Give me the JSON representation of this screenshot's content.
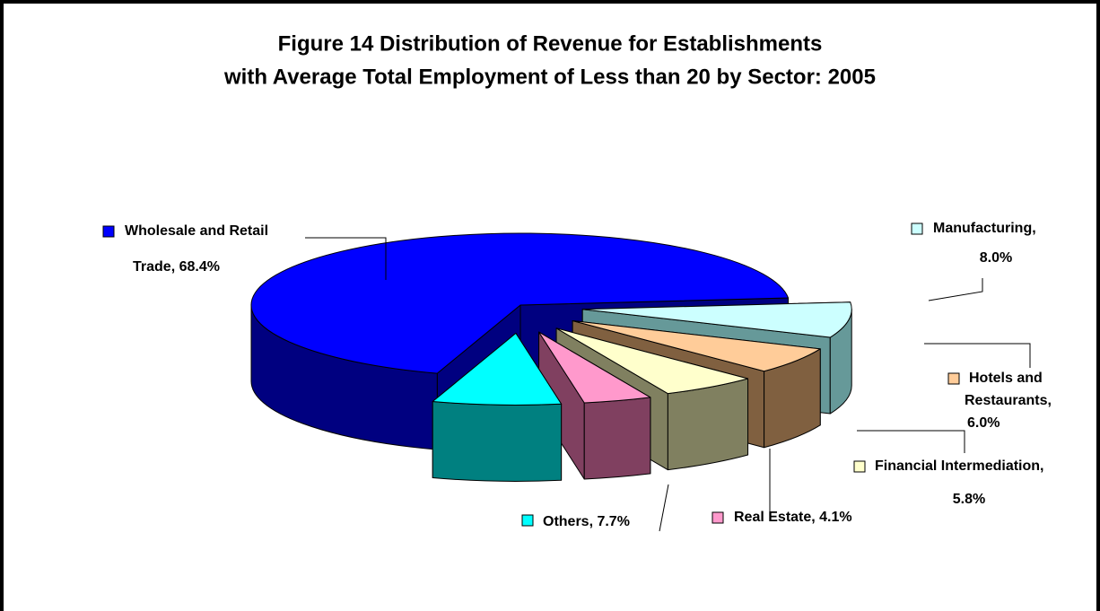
{
  "chart_data": {
    "type": "pie3d",
    "title": [
      "Figure 14  Distribution of Revenue for Establishments",
      "with Average Total Employment of Less than 20 by Sector: 2005"
    ],
    "values": [
      68.4,
      8.0,
      6.0,
      5.8,
      4.1,
      7.7
    ],
    "value_labels": [
      [
        "Wholesale and Retail",
        "Trade, 68.4%"
      ],
      [
        "Manufacturing,",
        "8.0%"
      ],
      [
        "Hotels and",
        "Restaurants,",
        "6.0%"
      ],
      [
        "Financial Intermediation,",
        "5.8%"
      ],
      [
        "Real Estate, 4.1%"
      ],
      [
        "Others, 7.7%"
      ]
    ],
    "colors": [
      "#0000ff",
      "#ccffff",
      "#ffcc99",
      "#ffffcc",
      "#ff99cc",
      "#00ffff"
    ],
    "side_colors": [
      "#000080",
      "#669999",
      "#806040",
      "#808060",
      "#804060",
      "#008080"
    ]
  }
}
